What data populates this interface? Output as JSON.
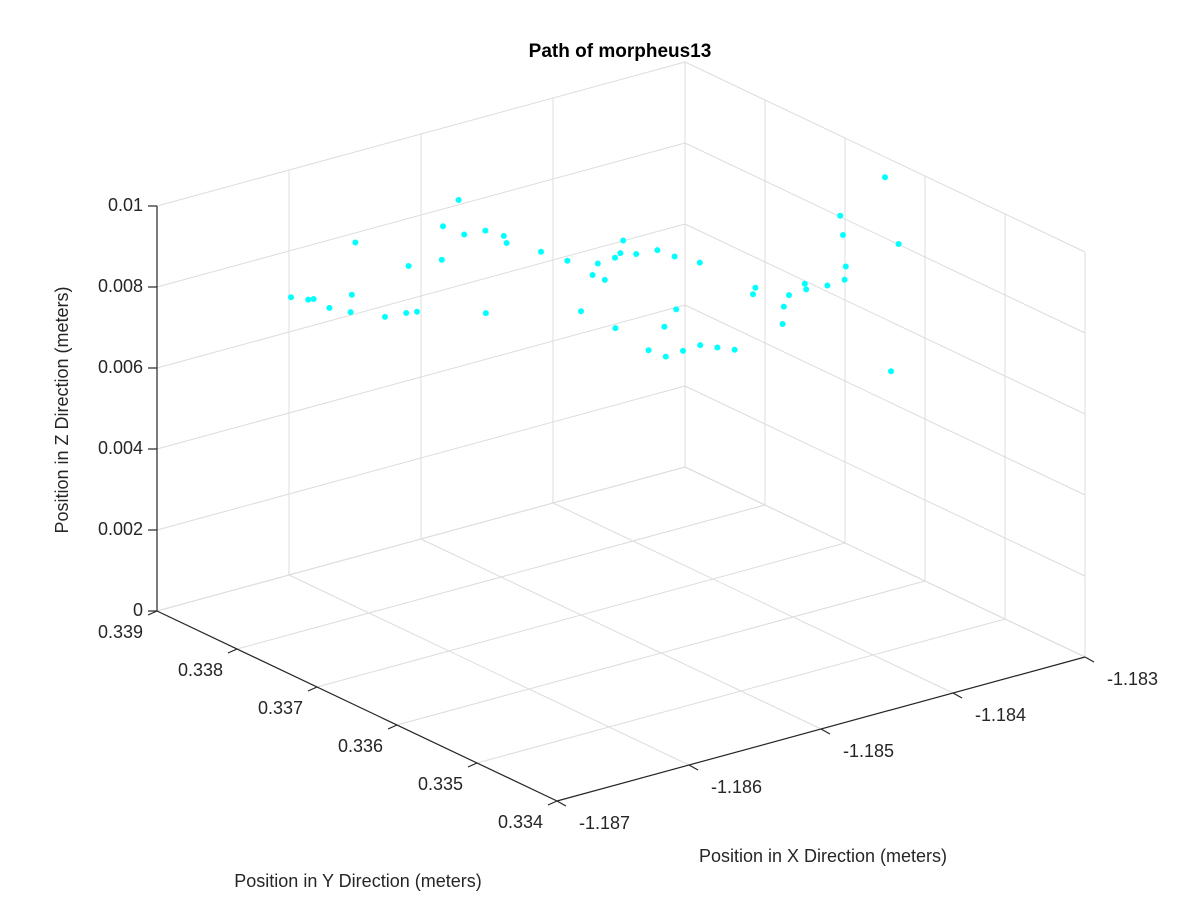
{
  "chart_data": {
    "type": "scatter",
    "title": "Path of morpheus13",
    "xlabel": "Position in X Direction (meters)",
    "ylabel": "Position in Y Direction (meters)",
    "zlabel": "Position in Z Direction (meters)",
    "color": "#00ffff",
    "grid": true,
    "xlim": [
      -1.187,
      -1.183
    ],
    "ylim": [
      0.334,
      0.339
    ],
    "zlim": [
      0,
      0.01
    ],
    "xticks": [
      -1.187,
      -1.186,
      -1.185,
      -1.184,
      -1.183
    ],
    "yticks": [
      0.334,
      0.335,
      0.336,
      0.337,
      0.338,
      0.339
    ],
    "zticks": [
      0,
      0.002,
      0.004,
      0.006,
      0.008,
      0.01
    ],
    "x": [
      -1.1864,
      -1.1863,
      -1.1865,
      -1.1862,
      -1.1861,
      -1.18645,
      -1.186,
      -1.1859,
      -1.1854,
      -1.1853,
      -1.1855,
      -1.1852,
      -1.1856,
      -1.185,
      -1.1857,
      -1.1851,
      -1.1845,
      -1.1844,
      -1.1846,
      -1.1843,
      -1.1847,
      -1.18455,
      -1.1842,
      -1.1848,
      -1.18445,
      -1.18465,
      -1.1839,
      -1.1838,
      -1.184,
      -1.1837,
      -1.1841,
      -1.18385,
      -1.1836,
      -1.1835,
      -1.1834,
      -1.1842,
      -1.1845,
      -1.1844,
      -1.1846,
      -1.1843,
      -1.1847,
      -1.1842,
      -1.18455,
      -1.1844,
      -1.185,
      -1.1856,
      -1.186,
      -1.1848,
      -1.184,
      -1.1832,
      -1.183,
      -1.1835,
      -1.1852,
      -1.1858,
      -1.1841,
      -1.1838
    ],
    "y": [
      0.3381,
      0.338,
      0.33815,
      0.3379,
      0.33805,
      0.33795,
      0.3378,
      0.3377,
      0.3378,
      0.3377,
      0.3379,
      0.3376,
      0.33775,
      0.3375,
      0.338,
      0.3378,
      0.3374,
      0.3373,
      0.33745,
      0.3372,
      0.33735,
      0.33725,
      0.33715,
      0.3375,
      0.33738,
      0.33728,
      0.336,
      0.3359,
      0.33605,
      0.33585,
      0.33595,
      0.3361,
      0.336,
      0.3362,
      0.3364,
      0.3358,
      0.33655,
      0.3365,
      0.3366,
      0.33645,
      0.33665,
      0.3364,
      0.3367,
      0.3368,
      0.337,
      0.3372,
      0.3374,
      0.3369,
      0.3365,
      0.336,
      0.3365,
      0.3356,
      0.3382,
      0.3385,
      0.337,
      0.3368
    ],
    "z": [
      0.008,
      0.0078,
      0.0081,
      0.0077,
      0.0079,
      0.0082,
      0.0075,
      0.0076,
      0.009,
      0.0091,
      0.0092,
      0.0088,
      0.0086,
      0.0085,
      0.0083,
      0.0087,
      0.008,
      0.0081,
      0.0079,
      0.0082,
      0.0078,
      0.0083,
      0.008,
      0.0081,
      0.0084,
      0.0077,
      0.008,
      0.0081,
      0.0079,
      0.0082,
      0.0078,
      0.008,
      0.0083,
      0.0088,
      0.009,
      0.0076,
      0.0065,
      0.0066,
      0.0064,
      0.0065,
      0.0066,
      0.0064,
      0.007,
      0.0072,
      0.0075,
      0.0078,
      0.008,
      0.007,
      0.0075,
      0.0085,
      0.0095,
      0.006,
      0.0093,
      0.0085,
      0.0079,
      0.0072
    ]
  }
}
